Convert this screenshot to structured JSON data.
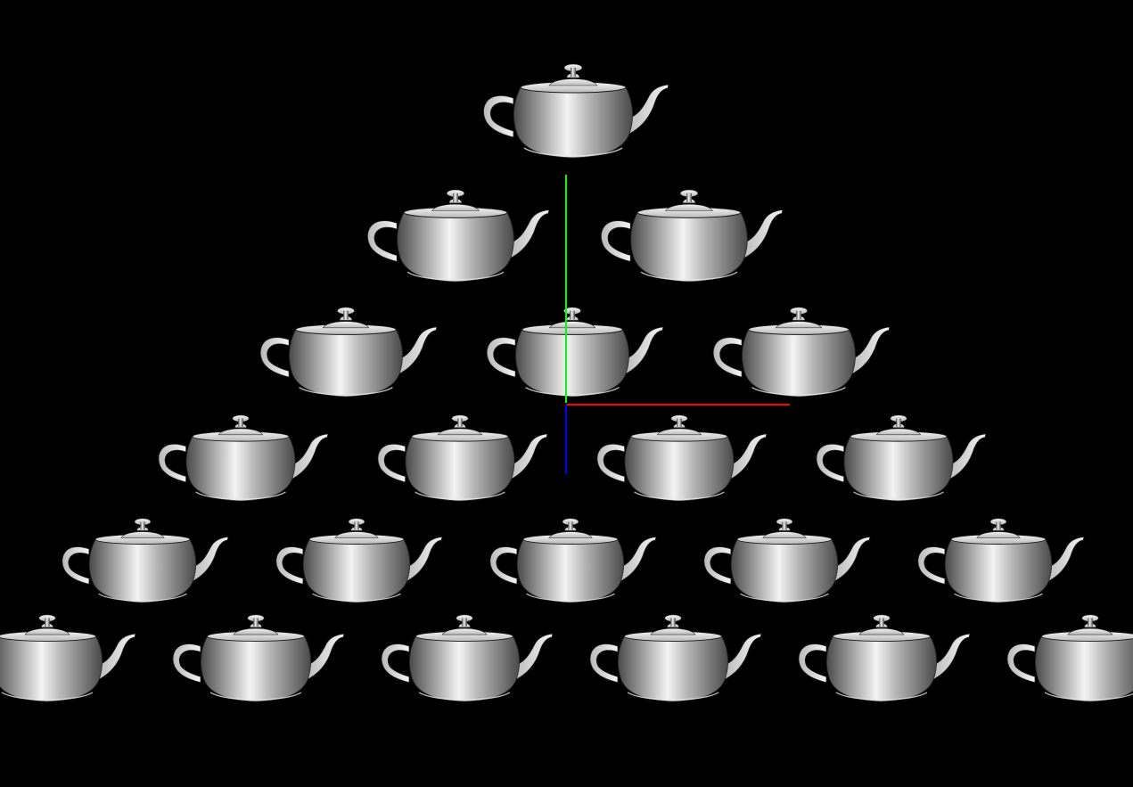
{
  "scene": {
    "background_color": "#000000",
    "object_name": "teapot",
    "row_counts": [
      1,
      2,
      3,
      4,
      5,
      6
    ],
    "material": {
      "highlight": "#f4f4f4",
      "mid": "#b9b9b9",
      "shadow": "#4a4a4a",
      "outline": "#1a1a1a"
    },
    "axes": {
      "x_color": "#ff0000",
      "y_color": "#00ff00",
      "z_color": "#0000ff"
    }
  }
}
